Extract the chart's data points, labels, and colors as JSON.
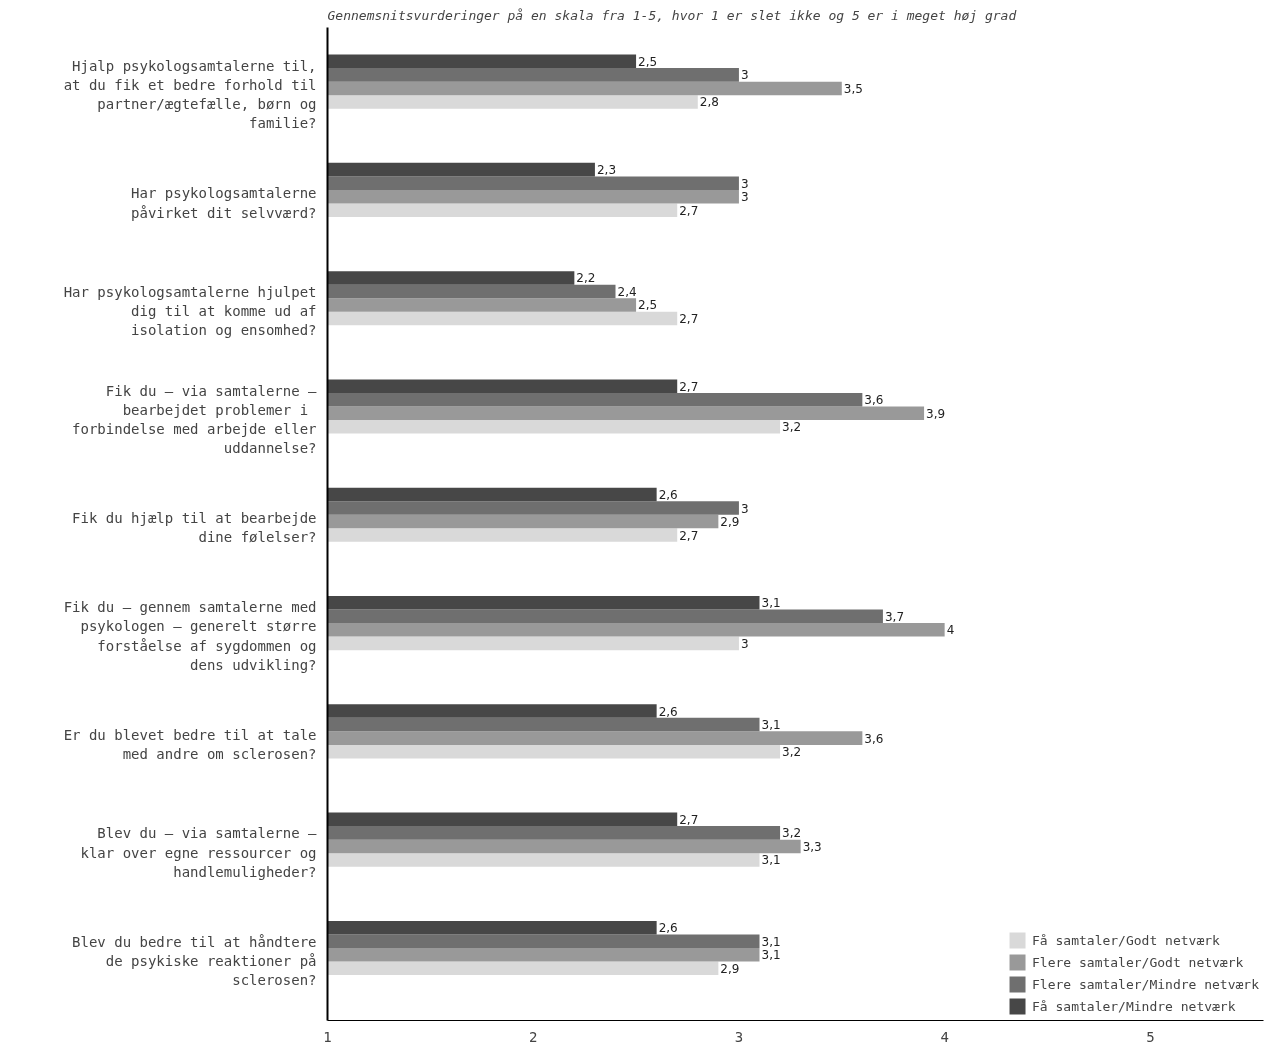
{
  "chart_data": {
    "type": "bar",
    "orientation": "horizontal",
    "title": "Gennemsnitsvurderinger på en skala fra 1-5, hvor 1 er slet ikke og 5 er i meget høj grad",
    "categories": [
      "Hjalp psykologsamtalerne til, at du fik et bedre forhold til partner/ægtefælle, børn og familie?",
      "Har psykologsamtalerne påvirket dit selvværd?",
      "Har psykologsamtalerne hjulpet dig til at komme ud af isolation og ensomhed?",
      "Fik du – via samtalerne – bearbejdet problemer  i forbindelse med arbejde eller uddannelse?",
      "Fik du hjælp til at bearbejde dine følelser?",
      "Fik du – gennem samtalerne med psykologen – generelt større forståelse af sygdommen og dens udvikling?",
      "Er du blevet bedre til at tale med andre om sclerosen?",
      "Blev du – via samtalerne – klar over egne ressourcer og handlemuligheder?",
      "Blev du bedre til at håndtere de psykiske reaktioner på sclerosen?"
    ],
    "series": [
      {
        "name": "Få samtaler/Godt netværk",
        "color": "#d9d9d9",
        "values": [
          2.8,
          2.7,
          2.7,
          3.2,
          2.7,
          3,
          3.2,
          3.1,
          2.9
        ],
        "value_labels": [
          "2,8",
          "2,7",
          "2,7",
          "3,2",
          "2,7",
          "3",
          "3,2",
          "3,1",
          "2,9"
        ]
      },
      {
        "name": "Flere samtaler/Godt netværk",
        "color": "#999999",
        "values": [
          3.5,
          3,
          2.5,
          3.9,
          2.9,
          4,
          3.6,
          3.3,
          3.1
        ],
        "value_labels": [
          "3,5",
          "3",
          "2,5",
          "3,9",
          "2,9",
          "4",
          "3,6",
          "3,3",
          "3,1"
        ]
      },
      {
        "name": "Flere samtaler/Mindre netværk",
        "color": "#6f6f6f",
        "values": [
          3,
          3,
          2.4,
          3.6,
          3,
          3.7,
          3.1,
          3.2,
          3.1
        ],
        "value_labels": [
          "3",
          "3",
          "2,4",
          "3,6",
          "3",
          "3,7",
          "3,1",
          "3,2",
          "3,1"
        ]
      },
      {
        "name": "Få samtaler/Mindre netværk",
        "color": "#474747",
        "values": [
          2.5,
          2.3,
          2.2,
          2.7,
          2.6,
          3.1,
          2.6,
          2.7,
          2.6
        ],
        "value_labels": [
          "2,5",
          "2,3",
          "2,2",
          "2,7",
          "2,6",
          "3,1",
          "2,6",
          "2,7",
          "2,6"
        ]
      }
    ],
    "xlim": [
      1,
      5.55
    ],
    "xticks": [
      1,
      2,
      3,
      4,
      5
    ],
    "grid": false,
    "legend": "bottom right"
  }
}
